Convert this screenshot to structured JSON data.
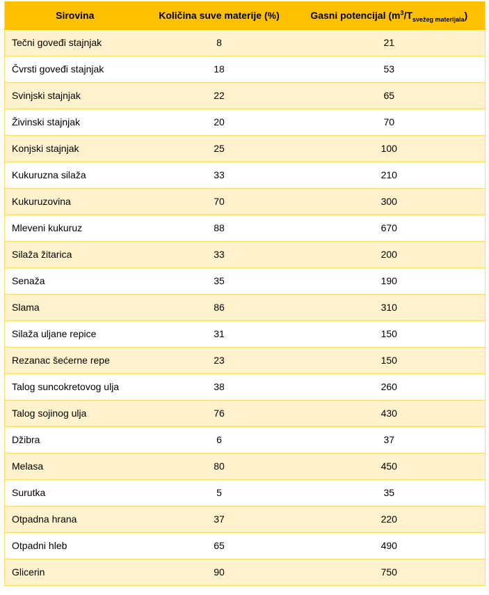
{
  "table": {
    "header": {
      "col1": "Sirovina",
      "col2": "Količina suve materije (%)",
      "col3_prefix": "Gasni potencijal (m",
      "col3_sup": "3",
      "col3_mid": "/T",
      "col3_sub": "svežeg materijala",
      "col3_suffix": ")"
    },
    "rows": [
      {
        "name": "Tečni goveđi stajnjak",
        "dry_matter": "8",
        "gas_potential": "21"
      },
      {
        "name": "Čvrsti goveđi stajnjak",
        "dry_matter": "18",
        "gas_potential": "53"
      },
      {
        "name": "Svinjski stajnjak",
        "dry_matter": "22",
        "gas_potential": "65"
      },
      {
        "name": "Živinski stajnjak",
        "dry_matter": "20",
        "gas_potential": "70"
      },
      {
        "name": "Konjski stajnjak",
        "dry_matter": "25",
        "gas_potential": "100"
      },
      {
        "name": "Kukuruzna silaža",
        "dry_matter": "33",
        "gas_potential": "210"
      },
      {
        "name": "Kukuruzovina",
        "dry_matter": "70",
        "gas_potential": "300"
      },
      {
        "name": "Mleveni kukuruz",
        "dry_matter": "88",
        "gas_potential": "670"
      },
      {
        "name": "Silaža žitarica",
        "dry_matter": "33",
        "gas_potential": "200"
      },
      {
        "name": "Senaža",
        "dry_matter": "35",
        "gas_potential": "190"
      },
      {
        "name": "Slama",
        "dry_matter": "86",
        "gas_potential": "310"
      },
      {
        "name": "Silaža uljane repice",
        "dry_matter": "31",
        "gas_potential": "150"
      },
      {
        "name": "Rezanac šećerne repe",
        "dry_matter": "23",
        "gas_potential": "150"
      },
      {
        "name": "Talog suncokretovog ulja",
        "dry_matter": "38",
        "gas_potential": "260"
      },
      {
        "name": "Talog sojinog ulja",
        "dry_matter": "76",
        "gas_potential": "430"
      },
      {
        "name": "Džibra",
        "dry_matter": "6",
        "gas_potential": "37"
      },
      {
        "name": "Melasa",
        "dry_matter": "80",
        "gas_potential": "450"
      },
      {
        "name": "Surutka",
        "dry_matter": "5",
        "gas_potential": "35"
      },
      {
        "name": "Otpadna hrana",
        "dry_matter": "37",
        "gas_potential": "220"
      },
      {
        "name": "Otpadni hleb",
        "dry_matter": "65",
        "gas_potential": "490"
      },
      {
        "name": "Glicerin",
        "dry_matter": "90",
        "gas_potential": "750"
      }
    ]
  },
  "colors": {
    "header_bg": "#ffc000",
    "odd_row_bg": "#fff2cc",
    "even_row_bg": "#ffffff",
    "grid_line": "#ffd966"
  }
}
